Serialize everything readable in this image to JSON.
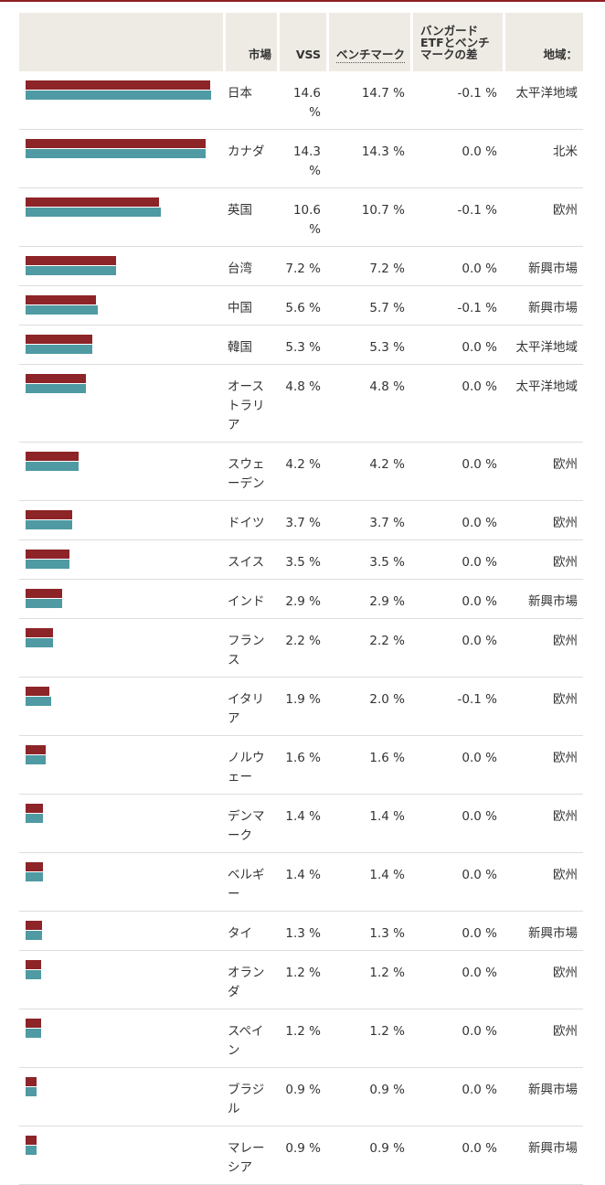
{
  "colors": {
    "vss_bar": "#8c2428",
    "benchmark_bar": "#4f9aa3",
    "accent": "#8c1d24"
  },
  "header": {
    "market": "市場",
    "vss": "VSS",
    "benchmark": "ベンチマーク",
    "diff": "バンガードETFとベンチマークの差",
    "region": "地域："
  },
  "chart_data": {
    "type": "bar",
    "orientation": "horizontal",
    "categories": [
      "日本",
      "カナダ",
      "英国",
      "台湾",
      "中国",
      "韓国",
      "オーストラリア",
      "スウェーデン",
      "ドイツ",
      "スイス",
      "インド",
      "フランス",
      "イタリア",
      "ノルウェー",
      "デンマーク",
      "ベルギー",
      "タイ",
      "オランダ",
      "スペイン",
      "ブラジル",
      "マレーシア"
    ],
    "series": [
      {
        "name": "VSS",
        "values": [
          14.6,
          14.3,
          10.6,
          7.2,
          5.6,
          5.3,
          4.8,
          4.2,
          3.7,
          3.5,
          2.9,
          2.2,
          1.9,
          1.6,
          1.4,
          1.4,
          1.3,
          1.2,
          1.2,
          0.9,
          0.9
        ]
      },
      {
        "name": "ベンチマーク",
        "values": [
          14.7,
          14.3,
          10.7,
          7.2,
          5.7,
          5.3,
          4.8,
          4.2,
          3.7,
          3.5,
          2.9,
          2.2,
          2.0,
          1.6,
          1.4,
          1.4,
          1.3,
          1.2,
          1.2,
          0.9,
          0.9
        ]
      }
    ],
    "xlim": [
      0,
      14.7
    ]
  },
  "rows": [
    {
      "market": "日本",
      "vss": "14.6 %",
      "bench": "14.7 %",
      "diff": "-0.1 %",
      "region": "太平洋地域"
    },
    {
      "market": "カナダ",
      "vss": "14.3 %",
      "bench": "14.3 %",
      "diff": "0.0 %",
      "region": "北米"
    },
    {
      "market": "英国",
      "vss": "10.6 %",
      "bench": "10.7 %",
      "diff": "-0.1 %",
      "region": "欧州"
    },
    {
      "market": "台湾",
      "vss": "7.2 %",
      "bench": "7.2 %",
      "diff": "0.0 %",
      "region": "新興市場"
    },
    {
      "market": "中国",
      "vss": "5.6 %",
      "bench": "5.7 %",
      "diff": "-0.1 %",
      "region": "新興市場"
    },
    {
      "market": "韓国",
      "vss": "5.3 %",
      "bench": "5.3 %",
      "diff": "0.0 %",
      "region": "太平洋地域"
    },
    {
      "market": "オーストラリア",
      "vss": "4.8 %",
      "bench": "4.8 %",
      "diff": "0.0 %",
      "region": "太平洋地域"
    },
    {
      "market": "スウェーデン",
      "vss": "4.2 %",
      "bench": "4.2 %",
      "diff": "0.0 %",
      "region": "欧州"
    },
    {
      "market": "ドイツ",
      "vss": "3.7 %",
      "bench": "3.7 %",
      "diff": "0.0 %",
      "region": "欧州"
    },
    {
      "market": "スイス",
      "vss": "3.5 %",
      "bench": "3.5 %",
      "diff": "0.0 %",
      "region": "欧州"
    },
    {
      "market": "インド",
      "vss": "2.9 %",
      "bench": "2.9 %",
      "diff": "0.0 %",
      "region": "新興市場"
    },
    {
      "market": "フランス",
      "vss": "2.2 %",
      "bench": "2.2 %",
      "diff": "0.0 %",
      "region": "欧州"
    },
    {
      "market": "イタリア",
      "vss": "1.9 %",
      "bench": "2.0 %",
      "diff": "-0.1 %",
      "region": "欧州"
    },
    {
      "market": "ノルウェー",
      "vss": "1.6 %",
      "bench": "1.6 %",
      "diff": "0.0 %",
      "region": "欧州"
    },
    {
      "market": "デンマーク",
      "vss": "1.4 %",
      "bench": "1.4 %",
      "diff": "0.0 %",
      "region": "欧州"
    },
    {
      "market": "ベルギー",
      "vss": "1.4 %",
      "bench": "1.4 %",
      "diff": "0.0 %",
      "region": "欧州"
    },
    {
      "market": "タイ",
      "vss": "1.3 %",
      "bench": "1.3 %",
      "diff": "0.0 %",
      "region": "新興市場"
    },
    {
      "market": "オランダ",
      "vss": "1.2 %",
      "bench": "1.2 %",
      "diff": "0.0 %",
      "region": "欧州"
    },
    {
      "market": "スペイン",
      "vss": "1.2 %",
      "bench": "1.2 %",
      "diff": "0.0 %",
      "region": "欧州"
    },
    {
      "market": "ブラジル",
      "vss": "0.9 %",
      "bench": "0.9 %",
      "diff": "0.0 %",
      "region": "新興市場"
    },
    {
      "market": "マレーシア",
      "vss": "0.9 %",
      "bench": "0.9 %",
      "diff": "0.0 %",
      "region": "新興市場"
    }
  ]
}
